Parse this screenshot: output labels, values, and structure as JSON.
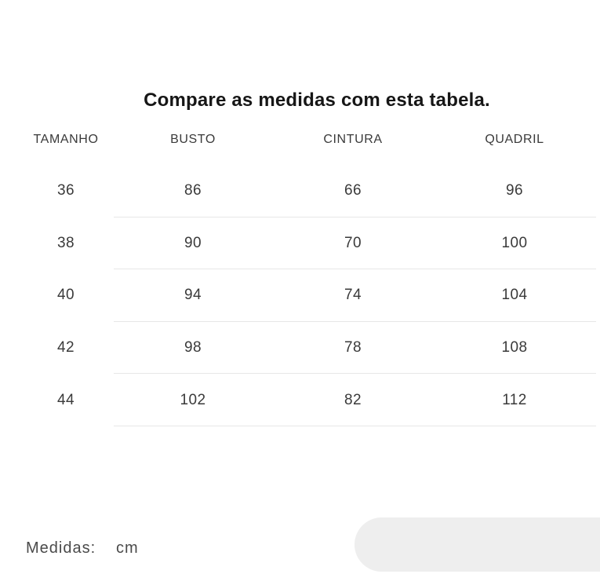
{
  "title": "Compare as medidas com esta tabela.",
  "table": {
    "headers": [
      "TAMANHO",
      "BUSTO",
      "CINTURA",
      "QUADRIL"
    ],
    "rows": [
      [
        "36",
        "86",
        "66",
        "96"
      ],
      [
        "38",
        "90",
        "70",
        "100"
      ],
      [
        "40",
        "94",
        "74",
        "104"
      ],
      [
        "42",
        "98",
        "78",
        "108"
      ],
      [
        "44",
        "102",
        "82",
        "112"
      ]
    ]
  },
  "footer": {
    "label": "Medidas:",
    "unit": "cm"
  },
  "colors": {
    "background": "#ffffff",
    "title_text": "#161616",
    "table_text": "#3a3a3a",
    "divider": "#e7e7e7",
    "pill": "#eeeeee"
  }
}
